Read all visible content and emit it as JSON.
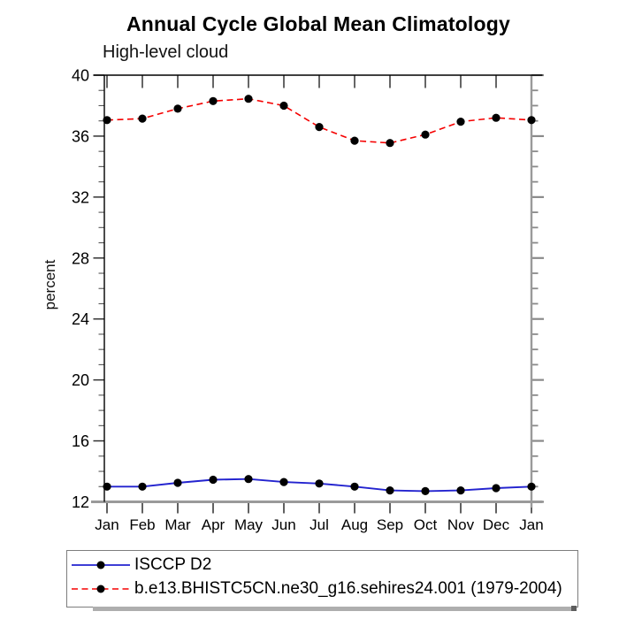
{
  "chart_data": {
    "type": "line",
    "title": "Annual Cycle Global Mean Climatology",
    "subtitle": "High-level cloud",
    "ylabel": "percent",
    "xlabel": "",
    "x_labels": [
      "Jan",
      "Feb",
      "Mar",
      "Apr",
      "May",
      "Jun",
      "Jul",
      "Aug",
      "Sep",
      "Oct",
      "Nov",
      "Dec",
      "Jan"
    ],
    "ylim": [
      12,
      40
    ],
    "yticks_major": [
      12,
      16,
      20,
      24,
      28,
      32,
      36,
      40
    ],
    "ytick_minor_step": 1,
    "grid": false,
    "legend_position": "bottom-box",
    "series": [
      {
        "name": "ISCCP D2",
        "color": "#2323cf",
        "line_style": "solid",
        "marker": "filled-circle",
        "marker_color": "#000000",
        "values": [
          13.0,
          13.0,
          13.25,
          13.45,
          13.5,
          13.3,
          13.2,
          13.0,
          12.75,
          12.7,
          12.75,
          12.9,
          13.0
        ]
      },
      {
        "name": "b.e13.BHISTC5CN.ne30_g16.sehires24.001 (1979-2004)",
        "color": "#f50000",
        "line_style": "dashed",
        "marker": "filled-circle",
        "marker_color": "#000000",
        "values": [
          37.05,
          37.15,
          37.8,
          38.3,
          38.45,
          38.0,
          36.6,
          35.7,
          35.55,
          36.1,
          36.95,
          37.2,
          37.05
        ]
      }
    ]
  },
  "colors": {
    "axis_dark": "#000000",
    "axis_gray": "#9a9a9a",
    "tick_major": "#333333",
    "tick_minor": "#555555",
    "text": "#000000"
  }
}
